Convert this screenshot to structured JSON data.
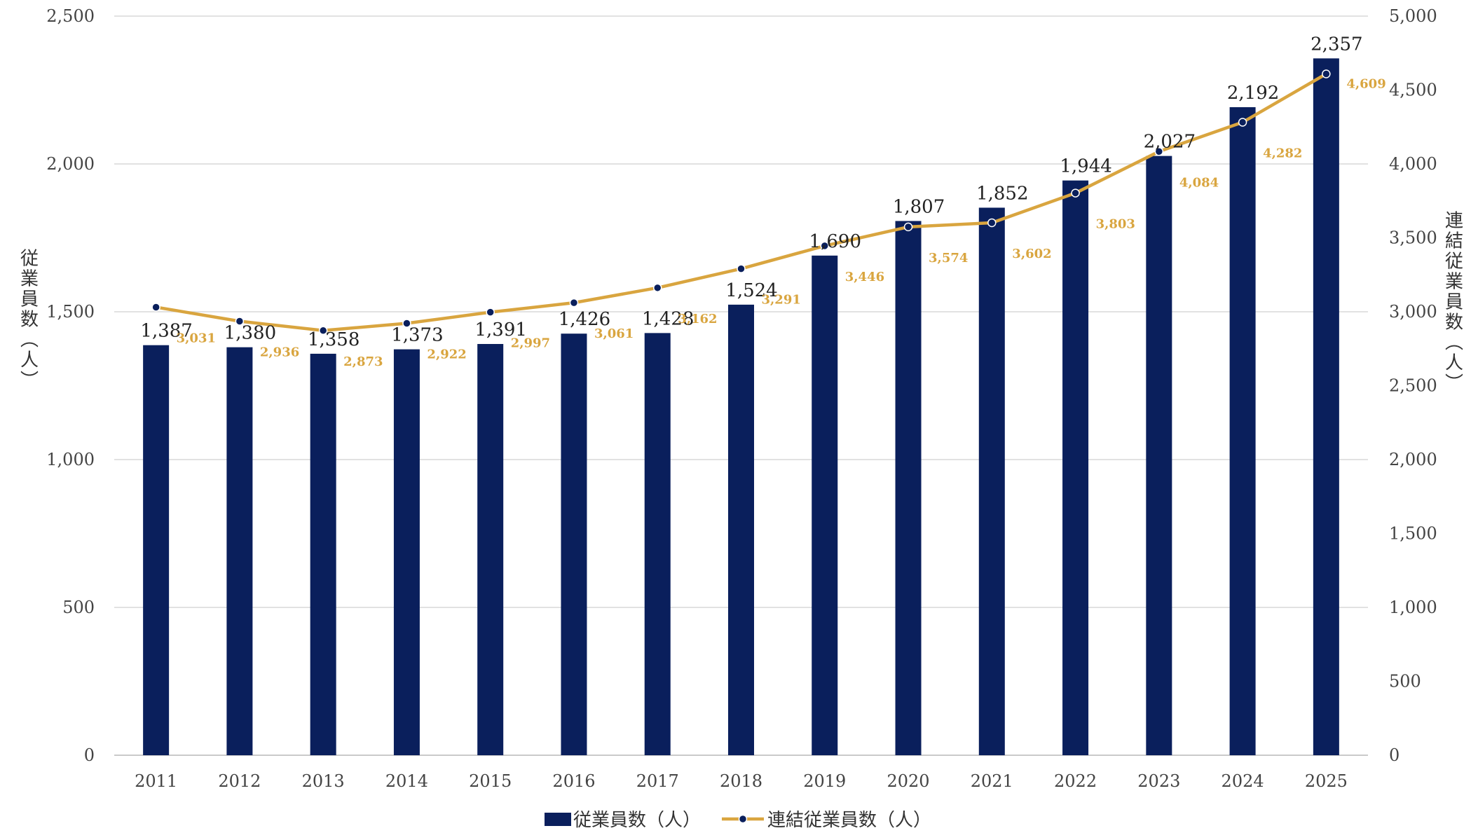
{
  "colors": {
    "bar": "#0a1f5c",
    "line": "#d9a53f",
    "line_label": "#d9a53f",
    "marker_fill": "#0a1f5c",
    "marker_stroke": "#ffffff",
    "grid": "#d9d9d9"
  },
  "chart_data": {
    "type": "bar",
    "categories": [
      "2011",
      "2012",
      "2013",
      "2014",
      "2015",
      "2016",
      "2017",
      "2018",
      "2019",
      "2020",
      "2021",
      "2022",
      "2023",
      "2024",
      "2025"
    ],
    "series": [
      {
        "name": "従業員数（人）",
        "type": "bar",
        "axis": "left",
        "values": [
          1387,
          1380,
          1358,
          1373,
          1391,
          1426,
          1428,
          1524,
          1690,
          1807,
          1852,
          1944,
          2027,
          2192,
          2357
        ],
        "labels": [
          "1,387",
          "1,380",
          "1,358",
          "1,373",
          "1,391",
          "1,426",
          "1,428",
          "1,524",
          "1,690",
          "1,807",
          "1,852",
          "1,944",
          "2,027",
          "2,192",
          "2,357"
        ]
      },
      {
        "name": "連結従業員数（人）",
        "type": "line",
        "axis": "right",
        "values": [
          3031,
          2936,
          2873,
          2922,
          2997,
          3061,
          3162,
          3291,
          3446,
          3574,
          3602,
          3803,
          4084,
          4282,
          4609
        ],
        "labels": [
          "3,031",
          "2,936",
          "2,873",
          "2,922",
          "2,997",
          "3,061",
          "3,162",
          "3,291",
          "3,446",
          "3,574",
          "3,602",
          "3,803",
          "4,084",
          "4,282",
          "4,609"
        ]
      }
    ],
    "ylabel_left": "従業員数（人）",
    "ylabel_right": "連結従業員数（人）",
    "ylim_left": [
      0,
      2500
    ],
    "ylim_right": [
      0,
      5000
    ],
    "yticks_left": [
      "0",
      "500",
      "1,000",
      "1,500",
      "2,000",
      "2,500"
    ],
    "yticks_right": [
      "0",
      "500",
      "1,000",
      "1,500",
      "2,000",
      "2,500",
      "3,000",
      "3,500",
      "4,000",
      "4,500",
      "5,000"
    ],
    "grid": true,
    "legend_position": "bottom"
  }
}
